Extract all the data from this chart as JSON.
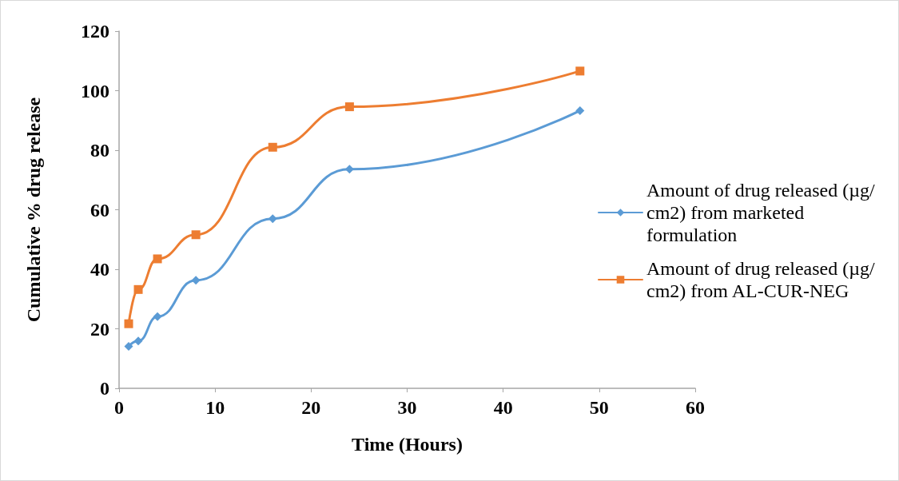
{
  "chart_data": {
    "type": "line",
    "xlabel": "Time (Hours)",
    "ylabel": "Cumulative % drug release",
    "x": [
      1,
      2,
      4,
      8,
      16,
      24,
      48
    ],
    "series": [
      {
        "name": "Amount of drug released (µg/cm2) from marketed formulation",
        "color": "#5b9bd5",
        "marker": "diamond",
        "values": [
          14.1,
          15.9,
          24.1,
          36.3,
          57.0,
          73.6,
          93.3
        ]
      },
      {
        "name": "Amount of drug released (µg/cm2) from AL-CUR-NEG",
        "color": "#ed7d31",
        "marker": "square",
        "values": [
          21.7,
          33.2,
          43.5,
          51.6,
          81.0,
          94.6,
          106.6
        ]
      }
    ],
    "xlim": [
      0,
      60
    ],
    "xticks": [
      0,
      10,
      20,
      30,
      40,
      50,
      60
    ],
    "ylim": [
      0,
      120
    ],
    "yticks": [
      0,
      20,
      40,
      60,
      80,
      100,
      120
    ],
    "grid": false,
    "legend": "right"
  }
}
